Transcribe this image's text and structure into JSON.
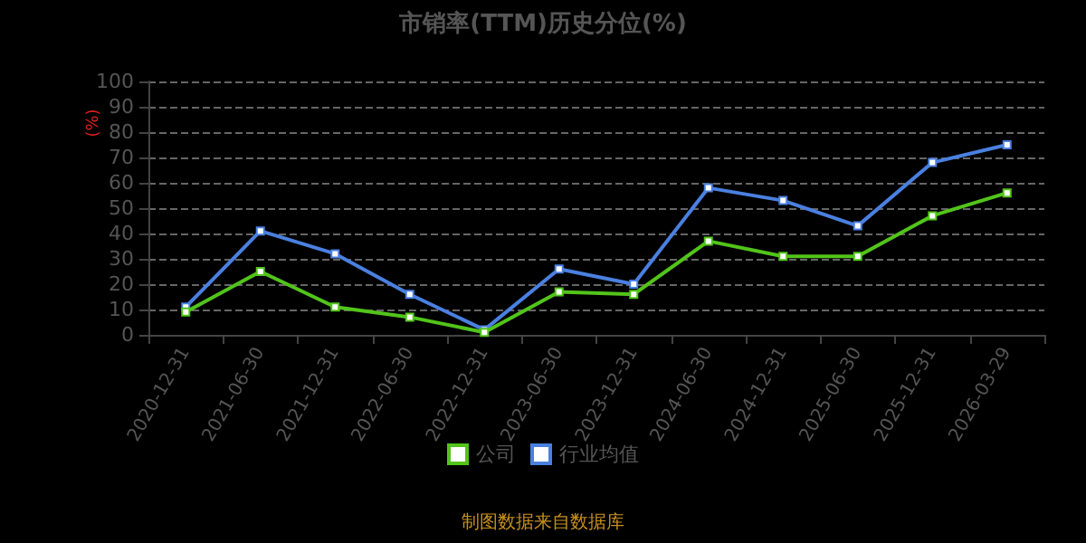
{
  "chart_data": {
    "type": "line",
    "title": "市销率(TTM)历史分位(%)",
    "ylabel": "(%)",
    "categories": [
      "2020-12-31",
      "2021-06-30",
      "2021-12-31",
      "2022-06-30",
      "2022-12-31",
      "2023-06-30",
      "2023-12-31",
      "2024-06-30",
      "2024-12-31",
      "2025-06-30",
      "2025-12-31",
      "2026-03-29"
    ],
    "series": [
      {
        "name": "公司",
        "color": "#52c41a",
        "values": [
          9,
          25,
          11,
          7,
          1,
          17,
          16,
          37,
          31,
          31,
          47,
          56
        ]
      },
      {
        "name": "行业均值",
        "color": "#4a80e0",
        "values": [
          11,
          41,
          32,
          16,
          2,
          26,
          20,
          58,
          53,
          43,
          68,
          75
        ]
      }
    ],
    "ylim": [
      0,
      100
    ],
    "yticks": [
      0,
      10,
      20,
      30,
      40,
      50,
      60,
      70,
      80,
      90,
      100
    ],
    "grid": "y",
    "legend": "bottom",
    "marker": "square",
    "line_style": "solid",
    "annotations": [
      "制图数据来自数据库"
    ]
  }
}
